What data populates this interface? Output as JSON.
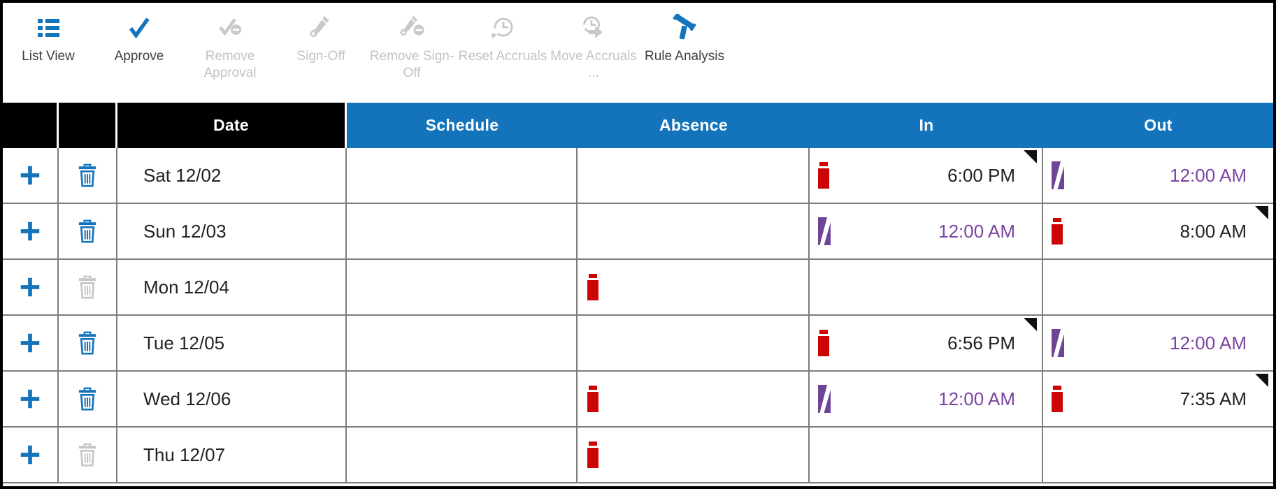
{
  "toolbar": {
    "items": [
      {
        "id": "list-view",
        "label": "List View",
        "icon": "list-view-icon",
        "enabled": true
      },
      {
        "id": "approve",
        "label": "Approve",
        "icon": "approve-check-icon",
        "enabled": true
      },
      {
        "id": "remove-approval",
        "label": "Remove Approval",
        "icon": "remove-approval-icon",
        "enabled": false
      },
      {
        "id": "sign-off",
        "label": "Sign-Off",
        "icon": "sign-off-pen-icon",
        "enabled": false
      },
      {
        "id": "remove-sign-off",
        "label": "Remove Sign-Off",
        "icon": "remove-sign-off-icon",
        "enabled": false
      },
      {
        "id": "reset-accruals",
        "label": "Reset Accruals",
        "icon": "reset-accruals-clock-icon",
        "enabled": false
      },
      {
        "id": "move-accruals",
        "label": "Move Accruals ...",
        "icon": "move-accruals-clock-icon",
        "enabled": false
      },
      {
        "id": "rule-analysis",
        "label": "Rule Analysis",
        "icon": "rule-analysis-gavel-icon",
        "enabled": true
      }
    ]
  },
  "table": {
    "headers": {
      "add": "",
      "delete": "",
      "date": "Date",
      "schedule": "Schedule",
      "absence": "Absence",
      "in": "In",
      "out": "Out"
    },
    "rows": [
      {
        "date": "Sat 12/02",
        "delete_enabled": true,
        "schedule": "",
        "absence_exception": false,
        "in": {
          "icon": "exception",
          "time": "6:00 PM",
          "time_color": "black",
          "note": true
        },
        "out": {
          "icon": "phantom",
          "time": "12:00 AM",
          "time_color": "purple",
          "note": false
        }
      },
      {
        "date": "Sun 12/03",
        "delete_enabled": true,
        "schedule": "",
        "absence_exception": false,
        "in": {
          "icon": "phantom",
          "time": "12:00 AM",
          "time_color": "purple",
          "note": false
        },
        "out": {
          "icon": "exception",
          "time": "8:00 AM",
          "time_color": "black",
          "note": true
        }
      },
      {
        "date": "Mon 12/04",
        "delete_enabled": false,
        "schedule": "",
        "absence_exception": true,
        "in": null,
        "out": null
      },
      {
        "date": "Tue 12/05",
        "delete_enabled": true,
        "schedule": "",
        "absence_exception": false,
        "in": {
          "icon": "exception",
          "time": "6:56 PM",
          "time_color": "black",
          "note": true
        },
        "out": {
          "icon": "phantom",
          "time": "12:00 AM",
          "time_color": "purple",
          "note": false
        }
      },
      {
        "date": "Wed 12/06",
        "delete_enabled": true,
        "schedule": "",
        "absence_exception": true,
        "in": {
          "icon": "phantom",
          "time": "12:00 AM",
          "time_color": "purple",
          "note": false
        },
        "out": {
          "icon": "exception",
          "time": "7:35 AM",
          "time_color": "black",
          "note": true
        }
      },
      {
        "date": "Thu 12/07",
        "delete_enabled": false,
        "schedule": "",
        "absence_exception": true,
        "in": null,
        "out": null
      }
    ]
  },
  "colors": {
    "accent_blue": "#1373bb",
    "header_black": "#000000",
    "exception_red": "#cc0404",
    "phantom_purple": "#6f4496",
    "purple_time_text": "#7b44a1",
    "disabled_gray": "#c8c8c8",
    "grid_line": "#7d7d7d",
    "note_indicator_black": "#111111"
  }
}
